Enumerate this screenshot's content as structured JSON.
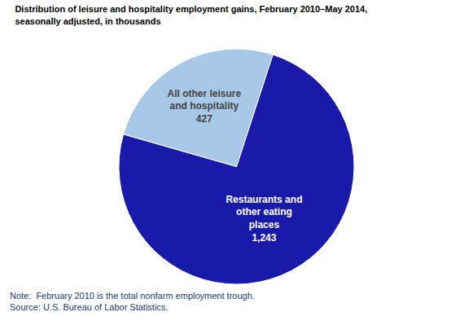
{
  "chart_data": {
    "type": "pie",
    "title": "Distribution of leisure and hospitality employment gains, February 2010–May 2014,\nseasonally adjusted, in thousands",
    "categories": [
      "Restaurants and\nother eating\nplaces",
      "All other leisure\nand hospitality"
    ],
    "values": [
      1243,
      427
    ],
    "value_labels": [
      "1,243",
      "427"
    ],
    "data_labels": true,
    "colors": [
      "#1a1aaa",
      "#a8c8e8"
    ],
    "annotations": [
      "Note:  February 2010 is the total nonfarm employment trough.",
      "Source: U.S. Bureau of Labor Statistics."
    ]
  }
}
